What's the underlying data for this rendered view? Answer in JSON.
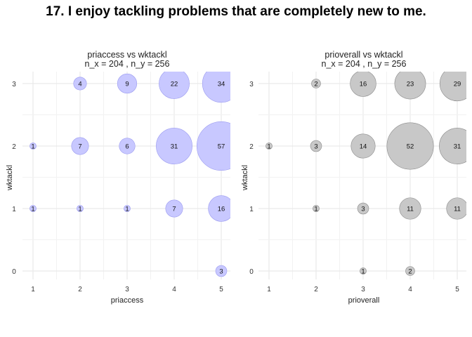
{
  "title": "17. I enjoy tackling problems that are completely new to me.",
  "chart_data": [
    {
      "type": "scatter",
      "title": "priaccess vs wktackl",
      "subtitle": "n_x = 204 , n_y = 256",
      "xlabel": "priaccess",
      "ylabel": "wktackl",
      "x_ticks": [
        "1",
        "2",
        "3",
        "4",
        "5"
      ],
      "y_ticks": [
        "0",
        "1",
        "2",
        "3"
      ],
      "color": "#c8c8ff",
      "stroke": "#9a9af0",
      "points": [
        {
          "x": 2,
          "y": 3,
          "n": 4
        },
        {
          "x": 3,
          "y": 3,
          "n": 9
        },
        {
          "x": 4,
          "y": 3,
          "n": 22
        },
        {
          "x": 5,
          "y": 3,
          "n": 34
        },
        {
          "x": 1,
          "y": 2,
          "n": 1
        },
        {
          "x": 2,
          "y": 2,
          "n": 7
        },
        {
          "x": 3,
          "y": 2,
          "n": 6
        },
        {
          "x": 4,
          "y": 2,
          "n": 31
        },
        {
          "x": 5,
          "y": 2,
          "n": 57
        },
        {
          "x": 1,
          "y": 1,
          "n": 1
        },
        {
          "x": 2,
          "y": 1,
          "n": 1
        },
        {
          "x": 3,
          "y": 1,
          "n": 1
        },
        {
          "x": 4,
          "y": 1,
          "n": 7
        },
        {
          "x": 5,
          "y": 1,
          "n": 16
        },
        {
          "x": 5,
          "y": 0,
          "n": 3
        }
      ]
    },
    {
      "type": "scatter",
      "title": "prioverall vs wktackl",
      "subtitle": "n_x = 204 , n_y = 256",
      "xlabel": "prioverall",
      "ylabel": "wktackl",
      "x_ticks": [
        "1",
        "2",
        "3",
        "4",
        "5"
      ],
      "y_ticks": [
        "0",
        "1",
        "2",
        "3"
      ],
      "color": "#c8c8c8",
      "stroke": "#8a8a8a",
      "points": [
        {
          "x": 2,
          "y": 3,
          "n": 2
        },
        {
          "x": 3,
          "y": 3,
          "n": 16
        },
        {
          "x": 4,
          "y": 3,
          "n": 23
        },
        {
          "x": 5,
          "y": 3,
          "n": 29
        },
        {
          "x": 1,
          "y": 2,
          "n": 1
        },
        {
          "x": 2,
          "y": 2,
          "n": 3
        },
        {
          "x": 3,
          "y": 2,
          "n": 14
        },
        {
          "x": 4,
          "y": 2,
          "n": 52
        },
        {
          "x": 5,
          "y": 2,
          "n": 31
        },
        {
          "x": 2,
          "y": 1,
          "n": 1
        },
        {
          "x": 3,
          "y": 1,
          "n": 3
        },
        {
          "x": 4,
          "y": 1,
          "n": 11
        },
        {
          "x": 5,
          "y": 1,
          "n": 11
        },
        {
          "x": 3,
          "y": 0,
          "n": 1
        },
        {
          "x": 4,
          "y": 0,
          "n": 2
        }
      ]
    }
  ]
}
